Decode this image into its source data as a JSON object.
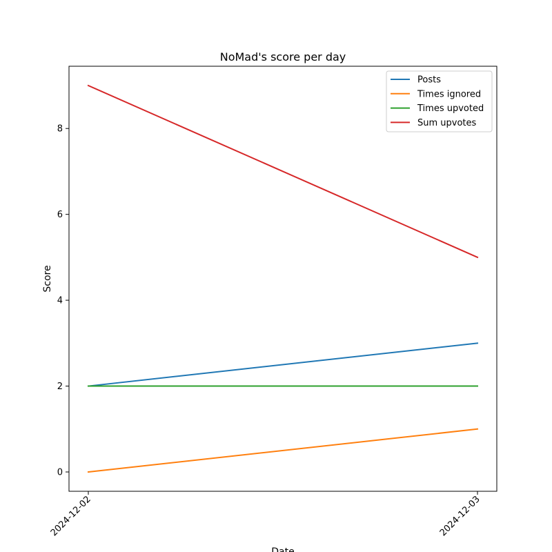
{
  "chart_data": {
    "type": "line",
    "title": "NoMad's score per day",
    "xlabel": "Date",
    "ylabel": "Score",
    "x": [
      "2024-12-02",
      "2024-12-03"
    ],
    "ylim": [
      -0.45,
      9.45
    ],
    "yticks": [
      0,
      2,
      4,
      6,
      8
    ],
    "grid": false,
    "legend_position": "top-right",
    "series": [
      {
        "name": "Posts",
        "color": "#1f77b4",
        "values": [
          2,
          3
        ]
      },
      {
        "name": "Times ignored",
        "color": "#ff7f0e",
        "values": [
          0,
          1
        ]
      },
      {
        "name": "Times upvoted",
        "color": "#2ca02c",
        "values": [
          2,
          2
        ]
      },
      {
        "name": "Sum upvotes",
        "color": "#d62728",
        "values": [
          9,
          5
        ]
      }
    ]
  }
}
